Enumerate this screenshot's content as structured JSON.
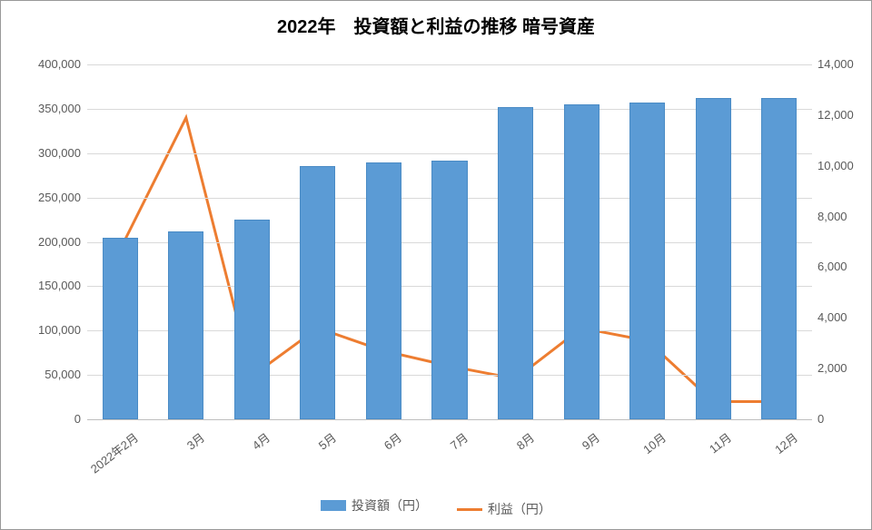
{
  "chart": {
    "type": "bar-line-combo",
    "title": "2022年　投資額と利益の推移 暗号資産",
    "title_fontsize": 20,
    "background_color": "#ffffff",
    "grid_color": "#d9d9d9",
    "border_color": "#999999",
    "text_color": "#595959",
    "categories": [
      "2022年2月",
      "3月",
      "4月",
      "5月",
      "6月",
      "7月",
      "8月",
      "9月",
      "10月",
      "11月",
      "12月"
    ],
    "bars": {
      "label": "投資額（円）",
      "color": "#5b9bd5",
      "border_color": "#4a8bc5",
      "values": [
        205000,
        212000,
        225000,
        285000,
        290000,
        292000,
        352000,
        355000,
        357000,
        362000,
        362000
      ],
      "bar_width_ratio": 0.54
    },
    "line": {
      "label": "利益（円）",
      "color": "#ed7d31",
      "width": 3,
      "values": [
        6700,
        11900,
        1700,
        3600,
        2700,
        2100,
        1600,
        3600,
        3100,
        700,
        700
      ]
    },
    "y_left": {
      "min": 0,
      "max": 400000,
      "step": 50000,
      "labels": [
        "0",
        "50,000",
        "100,000",
        "150,000",
        "200,000",
        "250,000",
        "300,000",
        "350,000",
        "400,000"
      ]
    },
    "y_right": {
      "min": 0,
      "max": 14000,
      "step": 2000,
      "labels": [
        "0",
        "2,000",
        "4,000",
        "6,000",
        "8,000",
        "10,000",
        "12,000",
        "14,000"
      ]
    }
  }
}
